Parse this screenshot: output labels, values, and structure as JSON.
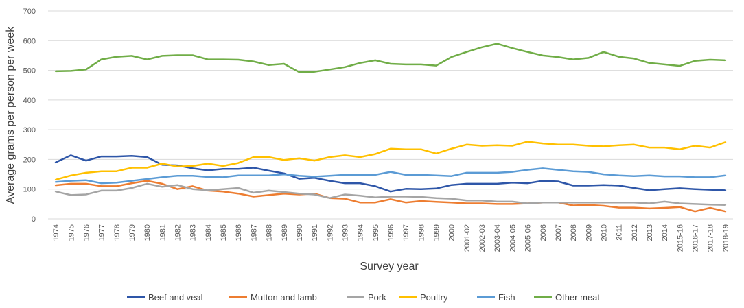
{
  "chart_data": {
    "type": "line",
    "title": "",
    "xlabel": "Survey year",
    "ylabel": "Average  grams  per person per week",
    "ylim": [
      0,
      700
    ],
    "yticks": [
      0,
      100,
      200,
      300,
      400,
      500,
      600,
      700
    ],
    "grid": "horizontal",
    "legend_position": "bottom",
    "categories": [
      "1974",
      "1975",
      "1976",
      "1977",
      "1978",
      "1979",
      "1980",
      "1981",
      "1982",
      "1983",
      "1984",
      "1985",
      "1986",
      "1987",
      "1988",
      "1989",
      "1990",
      "1991",
      "1992",
      "1993",
      "1994",
      "1995",
      "1996",
      "1997",
      "1998",
      "1999",
      "2000",
      "2001-02",
      "2002-03",
      "2003-04",
      "2004-05",
      "2005-06",
      "2006",
      "2007",
      "2008",
      "2009",
      "2010",
      "2011",
      "2012",
      "2013",
      "2014",
      "2015-16",
      "2016-17",
      "2017-18",
      "2018-19"
    ],
    "series": [
      {
        "name": "Beef and veal",
        "color": "#2E56A8",
        "values": [
          190,
          214,
          196,
          210,
          210,
          212,
          208,
          182,
          180,
          170,
          163,
          168,
          168,
          172,
          162,
          153,
          135,
          138,
          128,
          120,
          120,
          110,
          92,
          101,
          100,
          102,
          114,
          118,
          118,
          118,
          122,
          120,
          128,
          126,
          112,
          112,
          114,
          112,
          104,
          96,
          100,
          103,
          100,
          98,
          96
        ]
      },
      {
        "name": "Mutton and lamb",
        "color": "#ED7D31",
        "values": [
          113,
          118,
          118,
          110,
          110,
          120,
          128,
          118,
          100,
          110,
          95,
          92,
          85,
          75,
          80,
          85,
          82,
          85,
          70,
          68,
          55,
          55,
          66,
          55,
          60,
          57,
          55,
          52,
          52,
          50,
          50,
          52,
          55,
          55,
          45,
          47,
          44,
          38,
          38,
          35,
          37,
          40,
          25,
          37,
          25
        ]
      },
      {
        "name": "Pork",
        "color": "#A5A5A5",
        "values": [
          92,
          80,
          82,
          95,
          95,
          104,
          118,
          108,
          114,
          100,
          96,
          100,
          104,
          88,
          95,
          90,
          85,
          82,
          70,
          82,
          78,
          72,
          75,
          75,
          74,
          70,
          68,
          62,
          62,
          58,
          58,
          52,
          55,
          55,
          55,
          55,
          55,
          55,
          55,
          52,
          58,
          52,
          50,
          48,
          47
        ]
      },
      {
        "name": "Poultry",
        "color": "#FFC000",
        "values": [
          132,
          146,
          155,
          160,
          160,
          172,
          172,
          186,
          176,
          178,
          186,
          178,
          188,
          208,
          208,
          198,
          204,
          196,
          208,
          214,
          208,
          218,
          236,
          234,
          234,
          220,
          236,
          250,
          246,
          248,
          246,
          260,
          254,
          250,
          250,
          246,
          244,
          248,
          250,
          240,
          240,
          234,
          246,
          240,
          258
        ]
      },
      {
        "name": "Fish",
        "color": "#5B9BD5",
        "values": [
          124,
          128,
          130,
          120,
          122,
          128,
          134,
          140,
          145,
          145,
          141,
          140,
          146,
          146,
          146,
          150,
          145,
          142,
          145,
          148,
          148,
          148,
          158,
          148,
          148,
          146,
          144,
          155,
          155,
          155,
          158,
          165,
          170,
          165,
          160,
          158,
          150,
          146,
          144,
          146,
          143,
          143,
          140,
          140,
          146
        ]
      },
      {
        "name": "Other meat",
        "color": "#70AD47",
        "values": [
          497,
          498,
          503,
          537,
          546,
          549,
          537,
          549,
          551,
          551,
          537,
          537,
          536,
          530,
          518,
          522,
          494,
          495,
          503,
          511,
          525,
          534,
          522,
          520,
          520,
          516,
          545,
          562,
          578,
          590,
          575,
          562,
          550,
          545,
          537,
          542,
          562,
          546,
          540,
          525,
          520,
          515,
          532,
          536,
          534
        ]
      }
    ]
  }
}
